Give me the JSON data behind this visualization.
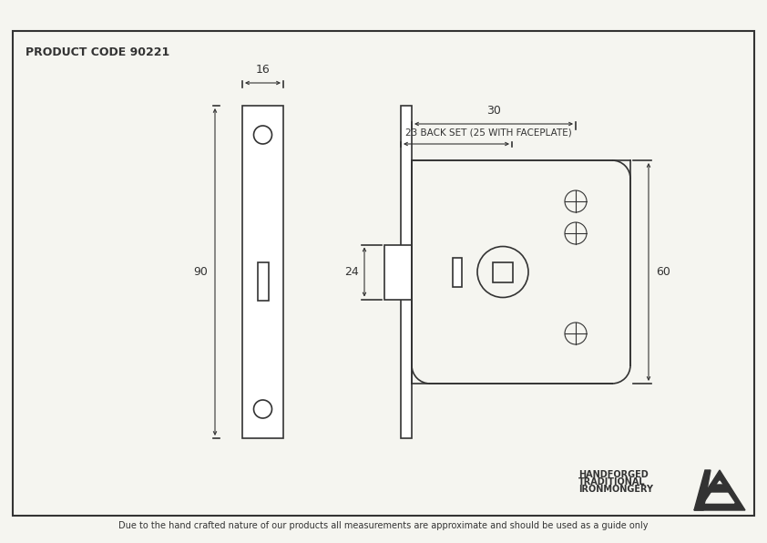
{
  "title": "PRODUCT CODE 90221",
  "bg_color": "#f5f5f0",
  "line_color": "#333333",
  "footer_text": "Due to the hand crafted nature of our products all measurements are approximate and should be used as a guide only",
  "brand_line1": "HANDFORGED",
  "brand_line2": "TRADITIONAL",
  "brand_line3": "IRONMONGERY",
  "dim_16": "16",
  "dim_90": "90",
  "dim_30": "30",
  "dim_23_backset": "23 BACK SET (25 WITH FACEPLATE)",
  "dim_24": "24",
  "dim_60": "60"
}
